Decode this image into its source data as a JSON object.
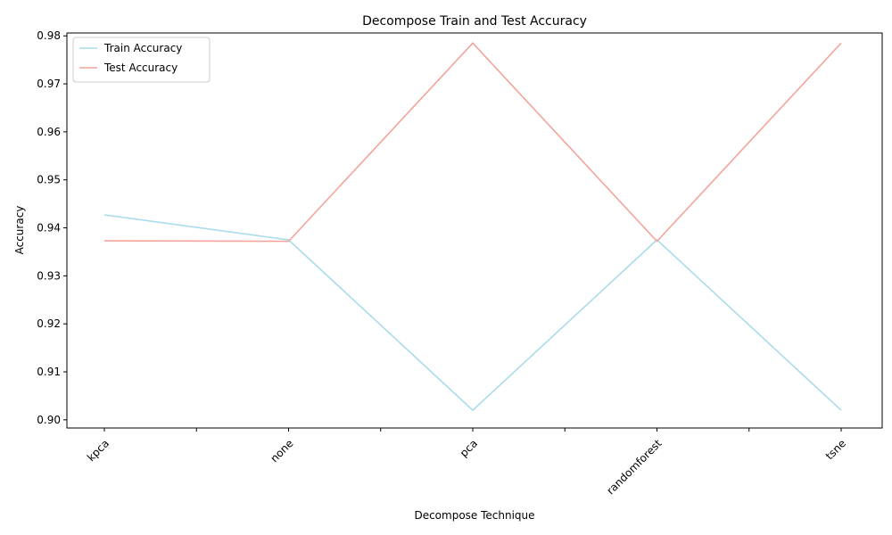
{
  "chart_data": {
    "type": "line",
    "title": "Decompose Train and Test Accuracy",
    "xlabel": "Decompose Technique",
    "ylabel": "Accuracy",
    "categories": [
      "kpca",
      "none",
      "pca",
      "randomforest",
      "tsne"
    ],
    "ylim": [
      0.8983,
      0.9806
    ],
    "yticks": [
      "0.90",
      "0.91",
      "0.92",
      "0.93",
      "0.94",
      "0.95",
      "0.96",
      "0.97",
      "0.98"
    ],
    "grid": false,
    "legend_position": "top-left",
    "series": [
      {
        "name": "Train Accuracy",
        "color": "#a8dcec",
        "values": [
          0.9427,
          0.9375,
          0.902,
          0.9375,
          0.902
        ]
      },
      {
        "name": "Test Accuracy",
        "color": "#f4a49a",
        "values": [
          0.9373,
          0.9372,
          0.9785,
          0.9372,
          0.9785
        ]
      }
    ]
  }
}
